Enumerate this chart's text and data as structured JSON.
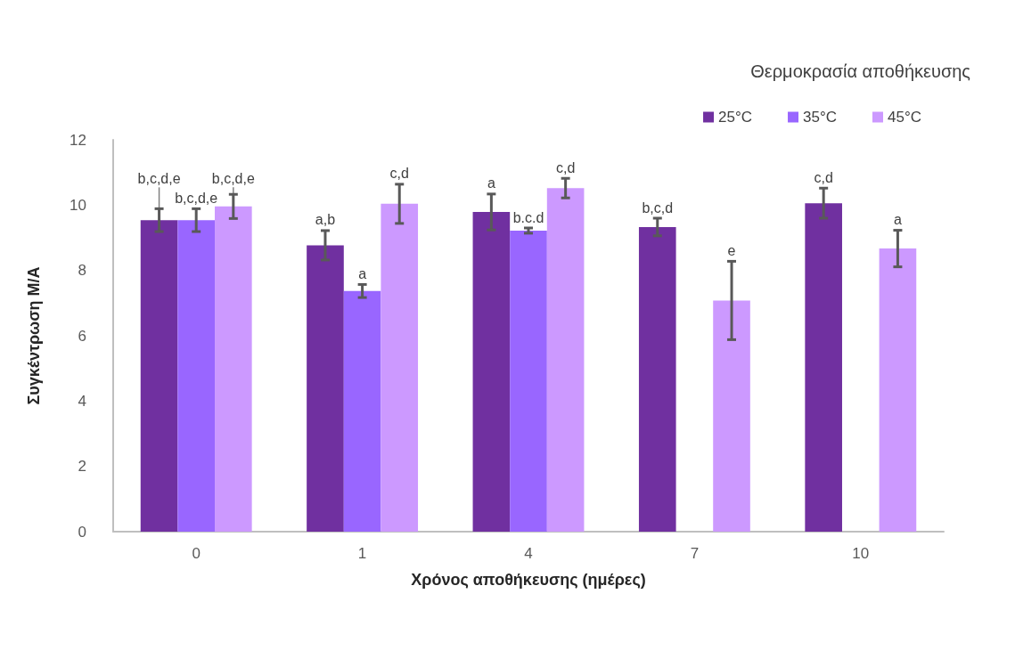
{
  "chart_data": {
    "type": "bar",
    "xlabel": "Χρόνος αποθήκευσης (ημέρες)",
    "ylabel": "Συγκέντρωση Μ/Α",
    "legend_title": "Θερμοκρασία αποθήκευσης",
    "legend": "top right",
    "grid": false,
    "categories": [
      "0",
      "1",
      "4",
      "7",
      "10"
    ],
    "ylim": [
      0,
      12
    ],
    "yticks": [
      0,
      2,
      4,
      6,
      8,
      10,
      12
    ],
    "series": [
      {
        "name": "25°C",
        "color": "#7030a0",
        "values": [
          9.54,
          8.77,
          9.79,
          9.33,
          10.06
        ],
        "errors": [
          0.35,
          0.45,
          0.55,
          0.27,
          0.46
        ],
        "value_labels": [
          "b,c,d,e",
          "a,b",
          "a",
          "b,c,d",
          "c,d"
        ]
      },
      {
        "name": "35°C",
        "color": "#9966ff",
        "values": [
          9.54,
          7.37,
          9.22,
          null,
          null
        ],
        "errors": [
          0.35,
          0.2,
          0.08,
          null,
          null
        ],
        "value_labels": [
          "b,c,d,e",
          "a",
          "b.c.d",
          null,
          null
        ]
      },
      {
        "name": "45°C",
        "color": "#cc99ff",
        "values": [
          9.96,
          10.04,
          10.52,
          7.08,
          8.67
        ],
        "errors": [
          0.37,
          0.6,
          0.3,
          1.2,
          0.56
        ],
        "value_labels": [
          "b,c,d,e",
          "c,d",
          "c,d",
          "e",
          "a"
        ]
      }
    ]
  }
}
